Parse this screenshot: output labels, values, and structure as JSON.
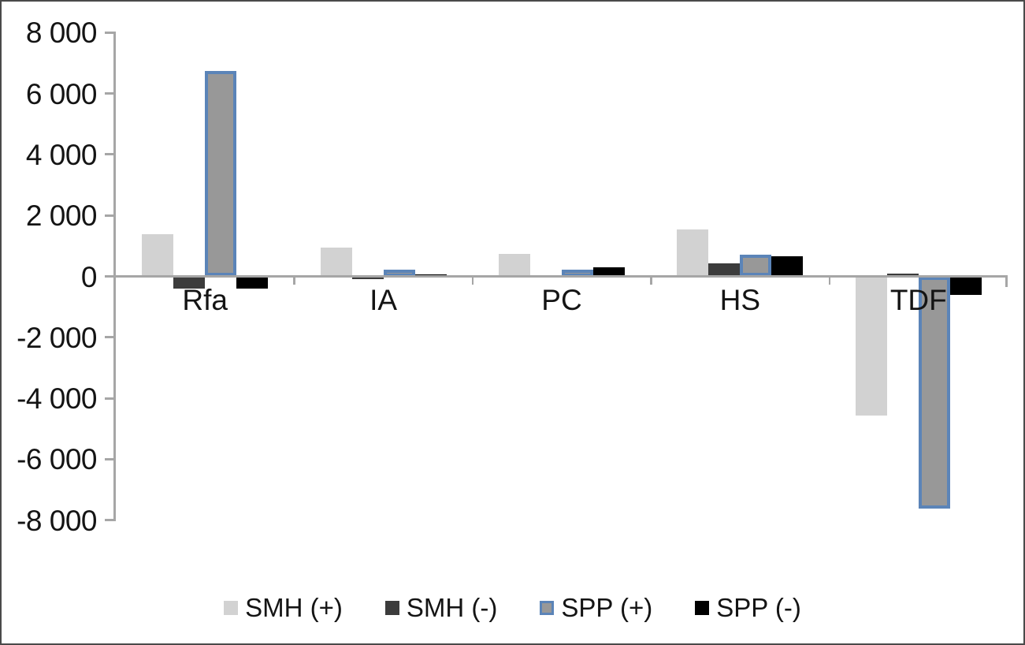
{
  "chart": {
    "background": "#ffffff",
    "frame_border_color": "#4a4a4a",
    "axis_color": "#a6a6a6",
    "text_color": "#141414"
  },
  "chart_data": {
    "type": "bar",
    "title": "",
    "xlabel": "",
    "ylabel": "",
    "categories": [
      "Rfa",
      "IA",
      "PC",
      "HS",
      "TDF"
    ],
    "series": [
      {
        "key": "smh-plus",
        "name": "SMH (+)",
        "color": "#d2d2d2",
        "values": [
          1390,
          950,
          750,
          1540,
          -4560
        ]
      },
      {
        "key": "smh-minus",
        "name": "SMH (-)",
        "color": "#3c3c3c",
        "values": [
          -410,
          -80,
          50,
          420,
          80
        ]
      },
      {
        "key": "spp-plus",
        "name": "SPP (+)",
        "color": "#989898",
        "border_color": "#5b84b8",
        "values": [
          6740,
          110,
          110,
          710,
          -7620
        ]
      },
      {
        "key": "spp-minus",
        "name": "SPP (-)",
        "color": "#000000",
        "values": [
          -390,
          70,
          290,
          670,
          -600
        ]
      }
    ],
    "ylim": [
      -8000,
      8000
    ],
    "ytick_step": 2000,
    "ytick_labels": [
      "8 000",
      "6 000",
      "4 000",
      "2 000",
      "0",
      "-2 000",
      "-4 000",
      "-6 000",
      "-8 000"
    ],
    "grid": false,
    "legend_position": "bottom"
  }
}
